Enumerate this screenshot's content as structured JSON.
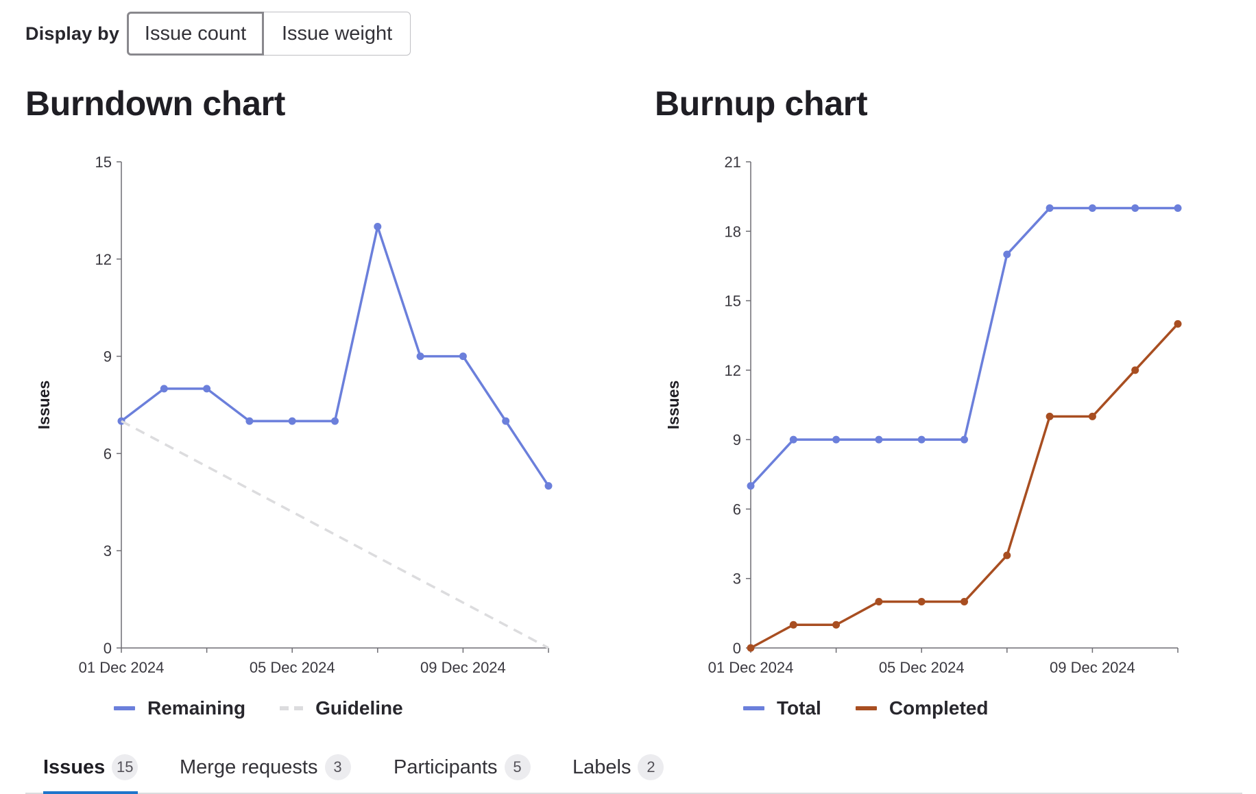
{
  "display_by": {
    "label": "Display by",
    "options": [
      "Issue count",
      "Issue weight"
    ],
    "selected": "Issue count"
  },
  "colors": {
    "remaining": "#6b7fdb",
    "guideline": "#dcdcde",
    "total": "#6b7fdb",
    "completed": "#a84e21",
    "active_tab_underline": "#1f75cb"
  },
  "burndown": {
    "title": "Burndown chart"
  },
  "burnup": {
    "title": "Burnup chart"
  },
  "chart_data": [
    {
      "type": "line",
      "title": "Burndown chart",
      "ylabel": "Issues",
      "xlabel": "",
      "ylim": [
        0,
        15
      ],
      "yticks": [
        0,
        3,
        6,
        9,
        12,
        15
      ],
      "x": [
        "01 Dec 2024",
        "02 Dec 2024",
        "03 Dec 2024",
        "04 Dec 2024",
        "05 Dec 2024",
        "06 Dec 2024",
        "07 Dec 2024",
        "08 Dec 2024",
        "09 Dec 2024",
        "10 Dec 2024",
        "11 Dec 2024"
      ],
      "xtick_labels": [
        "01 Dec 2024",
        "05 Dec 2024",
        "09 Dec 2024"
      ],
      "series": [
        {
          "name": "Remaining",
          "values": [
            7,
            8,
            8,
            7,
            7,
            7,
            13,
            9,
            9,
            7,
            5
          ],
          "style": "solid"
        },
        {
          "name": "Guideline",
          "values": [
            7,
            null,
            null,
            null,
            null,
            null,
            null,
            null,
            null,
            null,
            0
          ],
          "style": "dashed"
        }
      ],
      "legend": "bottom"
    },
    {
      "type": "line",
      "title": "Burnup chart",
      "ylabel": "Issues",
      "xlabel": "",
      "ylim": [
        0,
        21
      ],
      "yticks": [
        0,
        3,
        6,
        9,
        12,
        15,
        18,
        21
      ],
      "x": [
        "01 Dec 2024",
        "02 Dec 2024",
        "03 Dec 2024",
        "04 Dec 2024",
        "05 Dec 2024",
        "06 Dec 2024",
        "07 Dec 2024",
        "08 Dec 2024",
        "09 Dec 2024",
        "10 Dec 2024",
        "11 Dec 2024"
      ],
      "xtick_labels": [
        "01 Dec 2024",
        "05 Dec 2024",
        "09 Dec 2024"
      ],
      "series": [
        {
          "name": "Total",
          "values": [
            7,
            9,
            9,
            9,
            9,
            9,
            17,
            19,
            19,
            19,
            19
          ],
          "style": "solid"
        },
        {
          "name": "Completed",
          "values": [
            0,
            1,
            1,
            2,
            2,
            2,
            4,
            10,
            10,
            12,
            14
          ],
          "style": "solid"
        }
      ],
      "legend": "bottom"
    }
  ],
  "tabs": [
    {
      "label": "Issues",
      "count": "15",
      "active": true
    },
    {
      "label": "Merge requests",
      "count": "3",
      "active": false
    },
    {
      "label": "Participants",
      "count": "5",
      "active": false
    },
    {
      "label": "Labels",
      "count": "2",
      "active": false
    }
  ]
}
